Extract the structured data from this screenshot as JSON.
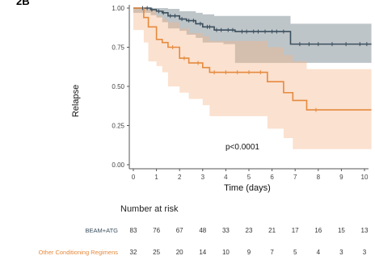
{
  "panel_label": "2B",
  "chart_data": {
    "type": "line",
    "step": true,
    "ylabel": "Relapse",
    "xlabel": "Time (days)",
    "ylim": [
      0,
      1
    ],
    "xlim": [
      -0.1,
      10.2
    ],
    "y_ticks": [
      "0.00",
      "0.25",
      "0.50",
      "0.75",
      "1.00"
    ],
    "y_tick_values": [
      0,
      0.25,
      0.5,
      0.75,
      1
    ],
    "x_ticks": [
      "0",
      "1",
      "2",
      "3",
      "4",
      "5",
      "6",
      "7",
      "8",
      "9",
      "10"
    ],
    "x_tick_values": [
      0,
      1,
      2,
      3,
      4,
      5,
      6,
      7,
      8,
      9,
      10
    ],
    "grid": false,
    "annotation": "p<0.0001",
    "series": [
      {
        "name": "BEAM+ATG",
        "color": "#3b4f5e",
        "band_color": "#6e7f86",
        "x": [
          0,
          0.75,
          1.0,
          1.25,
          1.5,
          2.0,
          2.3,
          2.7,
          3.0,
          3.5,
          3.9,
          4.4,
          6.8,
          10.3
        ],
        "y": [
          1.0,
          0.99,
          0.98,
          0.97,
          0.95,
          0.93,
          0.92,
          0.9,
          0.88,
          0.86,
          0.86,
          0.85,
          0.77,
          0.77
        ],
        "upper": [
          1.0,
          1.0,
          1.0,
          1.0,
          0.995,
          0.98,
          0.98,
          0.97,
          0.96,
          0.95,
          0.95,
          0.95,
          0.9,
          0.9
        ],
        "lower": [
          1.0,
          0.97,
          0.955,
          0.94,
          0.91,
          0.87,
          0.855,
          0.83,
          0.81,
          0.78,
          0.78,
          0.77,
          0.65,
          0.65
        ],
        "censor_x": [
          0.4,
          0.6,
          0.8,
          1.1,
          1.3,
          1.6,
          1.8,
          2.1,
          2.4,
          2.6,
          2.9,
          3.2,
          3.3,
          3.6,
          3.8,
          4.1,
          4.3,
          4.7,
          4.9,
          5.2,
          5.4,
          5.7,
          6.0,
          6.2,
          6.5,
          7.2,
          7.6,
          8.0,
          8.6,
          9.2,
          9.8,
          10.1
        ],
        "at_risk": [
          83,
          76,
          67,
          48,
          33,
          23,
          21,
          17,
          16,
          15,
          13
        ]
      },
      {
        "name": "Other Conditioning Regimens",
        "color": "#e58a3e",
        "band_color": "#f4b488",
        "x": [
          0,
          0.45,
          0.65,
          1.0,
          1.25,
          1.5,
          2.0,
          2.4,
          3.0,
          3.3,
          5.8,
          6.5,
          6.9,
          7.5,
          10.3
        ],
        "y": [
          1.0,
          0.94,
          0.88,
          0.8,
          0.78,
          0.75,
          0.68,
          0.65,
          0.62,
          0.59,
          0.53,
          0.46,
          0.41,
          0.35,
          0.35
        ],
        "upper": [
          1.0,
          1.0,
          0.99,
          0.95,
          0.93,
          0.91,
          0.87,
          0.84,
          0.82,
          0.79,
          0.75,
          0.7,
          0.66,
          0.61,
          0.61
        ],
        "lower": [
          1.0,
          0.86,
          0.78,
          0.66,
          0.63,
          0.59,
          0.5,
          0.46,
          0.42,
          0.38,
          0.31,
          0.23,
          0.17,
          0.1,
          0.1
        ],
        "censor_x": [
          1.7,
          2.2,
          2.8,
          3.5,
          4.0,
          4.5,
          5.0,
          5.5,
          7.9
        ],
        "at_risk": [
          32,
          25,
          20,
          14,
          10,
          9,
          7,
          5,
          4,
          3,
          3
        ]
      }
    ]
  },
  "risk_table": {
    "title": "Number at risk",
    "rows": [
      {
        "label": "BEAM+ATG",
        "color": "#3b4f5e",
        "values": [
          "83",
          "76",
          "67",
          "48",
          "33",
          "23",
          "21",
          "17",
          "16",
          "15",
          "13"
        ]
      },
      {
        "label": "Other Conditioning Regimens",
        "color": "#e58a3e",
        "values": [
          "32",
          "25",
          "20",
          "14",
          "10",
          "9",
          "7",
          "5",
          "4",
          "3",
          "3"
        ]
      }
    ]
  }
}
